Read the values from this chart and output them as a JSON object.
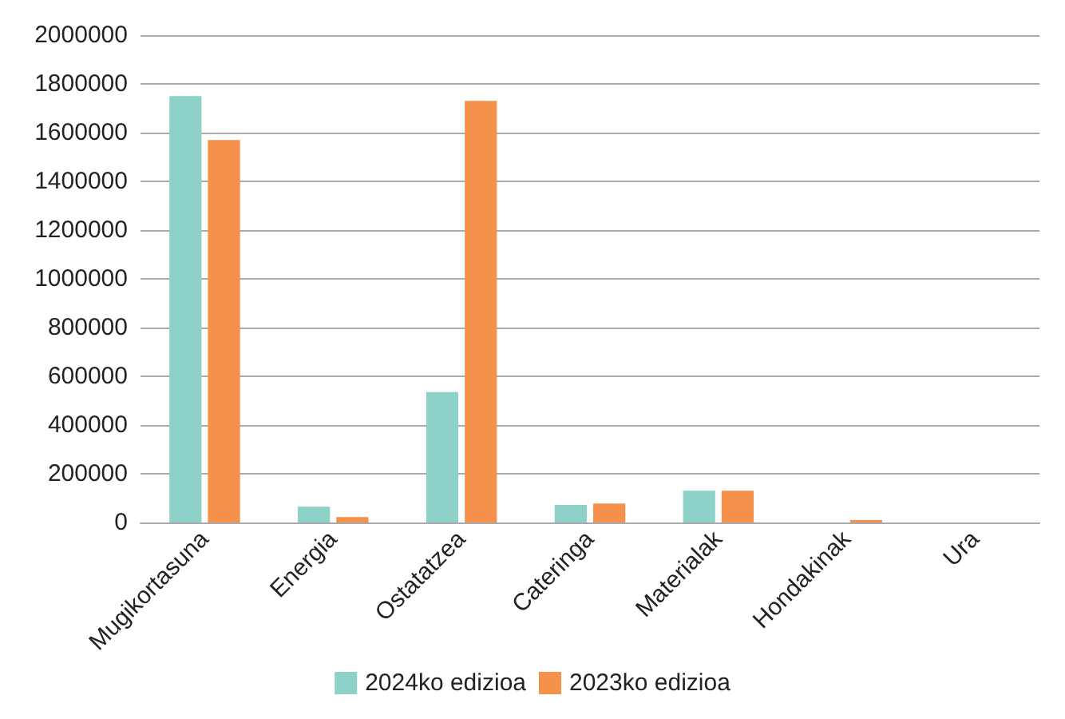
{
  "chart_data": {
    "type": "bar",
    "categories": [
      "Mugikortasuna",
      "Energia",
      "Ostatatzea",
      "Cateringa",
      "Materialak",
      "Hondakinak",
      "Ura"
    ],
    "series": [
      {
        "name": "2024ko edizioa",
        "color": "#8dd1c9",
        "values": [
          1750000,
          65000,
          535000,
          72000,
          130000,
          0,
          0
        ]
      },
      {
        "name": "2023ko edizioa",
        "color": "#f5914a",
        "values": [
          1570000,
          22000,
          1730000,
          78000,
          130000,
          10000,
          0
        ]
      }
    ],
    "ylim": [
      0,
      2000000
    ],
    "yticks": [
      0,
      200000,
      400000,
      600000,
      800000,
      1000000,
      1200000,
      1400000,
      1600000,
      1800000,
      2000000
    ],
    "grid": "y",
    "legend": "bottom"
  }
}
